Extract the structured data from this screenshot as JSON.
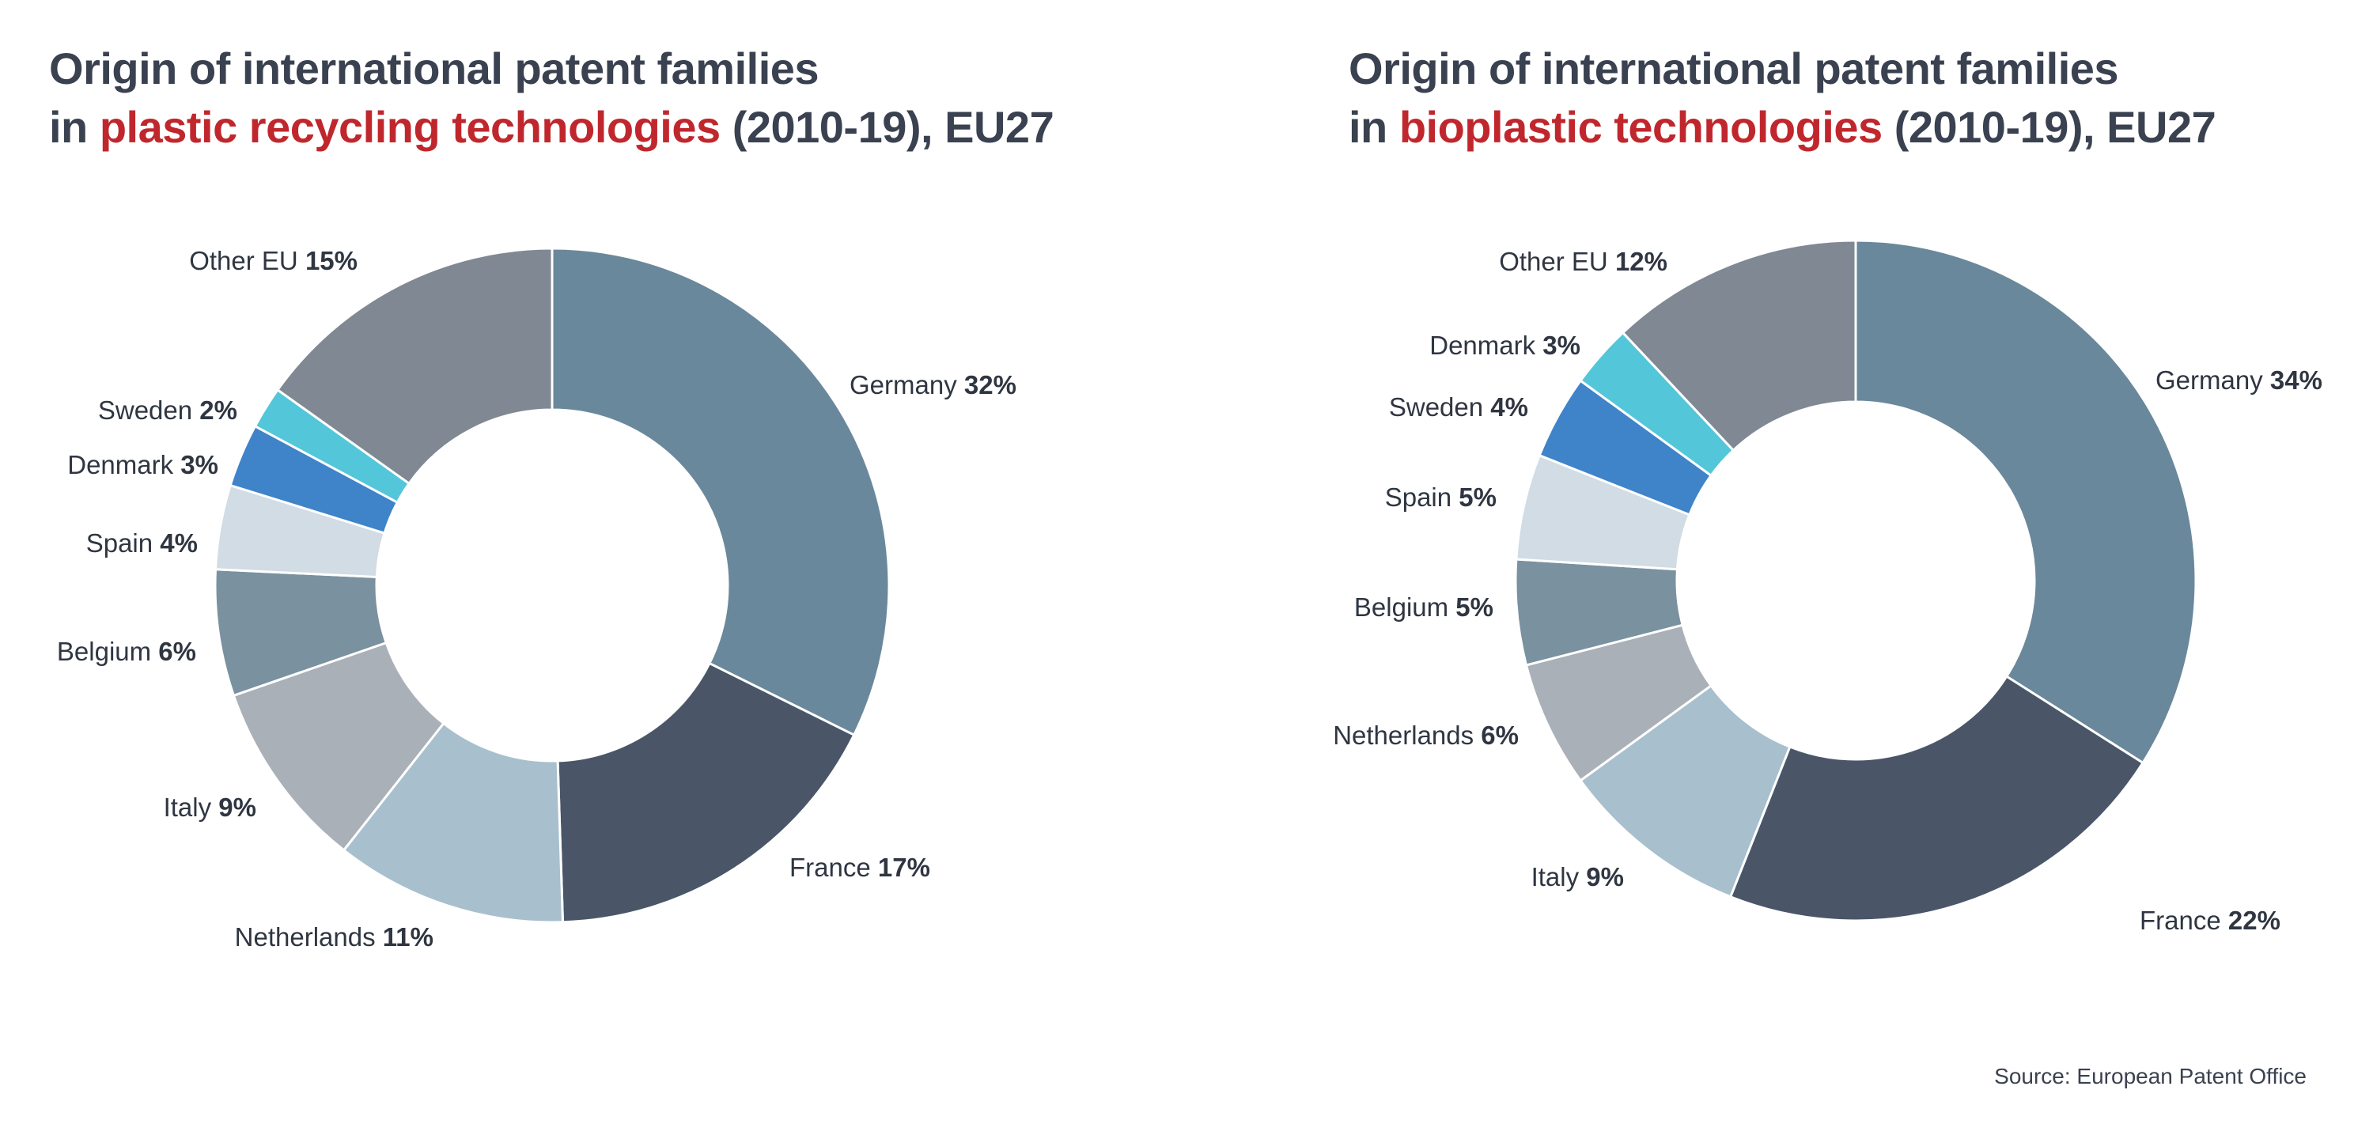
{
  "charts": [
    {
      "title_line1": "Origin of international patent families",
      "title_prefix": "in ",
      "title_highlight": "plastic recycling technologies",
      "title_suffix": " (2010-19), EU27"
    },
    {
      "title_line1": "Origin of international patent families",
      "title_prefix": "in ",
      "title_highlight": "bioplastic technologies",
      "title_suffix": " (2010-19), EU27"
    }
  ],
  "chart_data": [
    {
      "type": "pie",
      "donut": true,
      "title": "Origin of international patent families in plastic recycling technologies (2010-19), EU27",
      "unit": "%",
      "slices": [
        {
          "label": "Germany",
          "value": 32,
          "display": "32%",
          "color": "#6a889b"
        },
        {
          "label": "France",
          "value": 17,
          "display": "17%",
          "color": "#4a5668"
        },
        {
          "label": "Netherlands",
          "value": 11,
          "display": "11%",
          "color": "#a8bfcd"
        },
        {
          "label": "Italy",
          "value": 9,
          "display": "9%",
          "color": "#aab0b8"
        },
        {
          "label": "Belgium",
          "value": 6,
          "display": "6%",
          "color": "#7a919f"
        },
        {
          "label": "Spain",
          "value": 4,
          "display": "4%",
          "color": "#d1dce5"
        },
        {
          "label": "Denmark",
          "value": 3,
          "display": "3%",
          "color": "#3f83c8"
        },
        {
          "label": "Sweden",
          "value": 2,
          "display": "2%",
          "color": "#54c6da"
        },
        {
          "label": "Other EU",
          "value": 15,
          "display": "15%",
          "color": "#7f8893"
        }
      ]
    },
    {
      "type": "pie",
      "donut": true,
      "title": "Origin of international patent families in bioplastic technologies (2010-19), EU27",
      "unit": "%",
      "slices": [
        {
          "label": "Germany",
          "value": 34,
          "display": "34%",
          "color": "#6a889b"
        },
        {
          "label": "France",
          "value": 22,
          "display": "22%",
          "color": "#4a5668"
        },
        {
          "label": "Italy",
          "value": 9,
          "display": "9%",
          "color": "#a8bfcd"
        },
        {
          "label": "Netherlands",
          "value": 6,
          "display": "6%",
          "color": "#aab0b8"
        },
        {
          "label": "Belgium",
          "value": 5,
          "display": "5%",
          "color": "#7a919f"
        },
        {
          "label": "Spain",
          "value": 5,
          "display": "5%",
          "color": "#d1dce5"
        },
        {
          "label": "Sweden",
          "value": 4,
          "display": "4%",
          "color": "#3f83c8"
        },
        {
          "label": "Denmark",
          "value": 3,
          "display": "3%",
          "color": "#54c6da"
        },
        {
          "label": "Other EU",
          "value": 12,
          "display": "12%",
          "color": "#7f8893"
        }
      ]
    }
  ],
  "source": "Source: European Patent Office"
}
